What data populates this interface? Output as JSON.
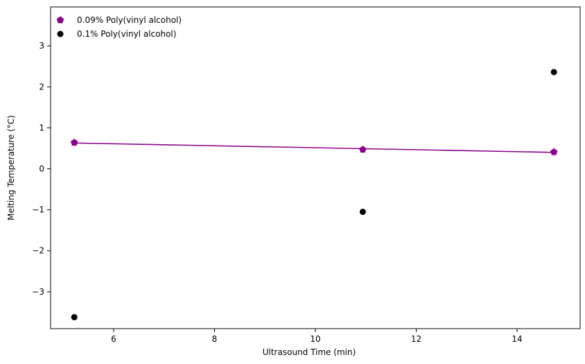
{
  "chart_data": {
    "type": "scatter",
    "xlabel": "Ultrasound Time (min)",
    "ylabel": "Melting Temperature (°C)",
    "xlim": [
      4.75,
      15.25
    ],
    "ylim": [
      -3.9,
      3.95
    ],
    "xticks": [
      6,
      8,
      10,
      12,
      14
    ],
    "yticks": [
      -3,
      -2,
      -1,
      0,
      1,
      2,
      3
    ],
    "xtick_labels": [
      "6",
      "8",
      "10",
      "12",
      "14"
    ],
    "ytick_labels": [
      "−3",
      "−2",
      "−1",
      "0",
      "1",
      "2",
      "3"
    ],
    "grid": false,
    "legend_position": "top-left",
    "series": [
      {
        "name": "0.09% Poly(vinyl alcohol)",
        "color": "#8b008b",
        "marker": "pentagon",
        "x": [
          5.22,
          10.94,
          14.73
        ],
        "y": [
          0.64,
          0.47,
          0.41
        ],
        "fit_line": {
          "x": [
            5.22,
            14.73
          ],
          "y": [
            0.63,
            0.4
          ]
        }
      },
      {
        "name": "0.1% Poly(vinyl alcohol)",
        "color": "#000000",
        "marker": "circle",
        "x": [
          5.22,
          10.94,
          14.73
        ],
        "y": [
          -3.62,
          -1.05,
          2.36
        ]
      }
    ]
  }
}
